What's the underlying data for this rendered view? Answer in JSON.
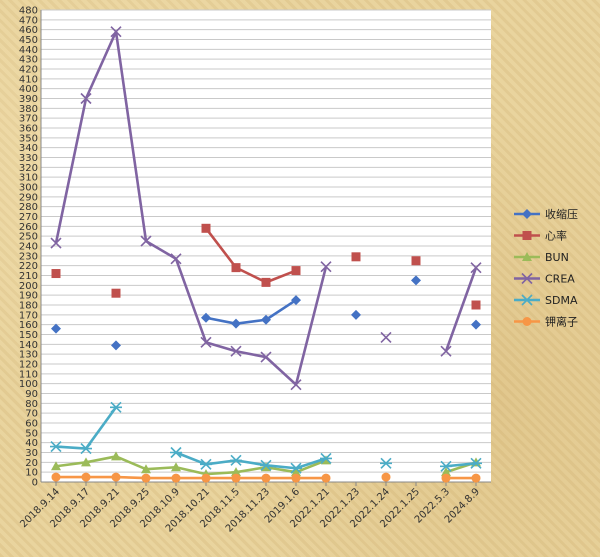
{
  "chart_data": {
    "type": "line",
    "categories": [
      "2018.9.14",
      "2018.9.17",
      "2018.9.21",
      "2018.9.25",
      "2018.10.9",
      "2018.10.21",
      "2018.11.5",
      "2018.11.23",
      "2019.1.6",
      "2022.1.21",
      "2022.1.23",
      "2022.1.24",
      "2022.1.25",
      "2022.5.3",
      "2024.8.9"
    ],
    "ylim": [
      0,
      480
    ],
    "ytick_step": 10,
    "grid": true,
    "legend_position": "right",
    "series": [
      {
        "name": "收缩压",
        "color": "#4472c4",
        "marker": "diamond",
        "values": [
          156,
          null,
          139,
          null,
          null,
          167,
          161,
          165,
          185,
          null,
          170,
          null,
          205,
          null,
          160
        ]
      },
      {
        "name": "心率",
        "color": "#c0504d",
        "marker": "square",
        "values": [
          212,
          null,
          192,
          null,
          null,
          258,
          218,
          203,
          215,
          null,
          229,
          null,
          225,
          null,
          180
        ]
      },
      {
        "name": "BUN",
        "color": "#9bbb59",
        "marker": "triangle",
        "values": [
          16,
          20,
          26,
          13,
          15,
          8,
          10,
          15,
          10,
          22,
          null,
          null,
          null,
          10,
          20
        ]
      },
      {
        "name": "CREA",
        "color": "#8064a2",
        "marker": "x",
        "values": [
          243,
          390,
          458,
          245,
          227,
          142,
          133,
          127,
          99,
          219,
          null,
          147,
          null,
          133,
          218
        ]
      },
      {
        "name": "SDMA",
        "color": "#4bacc6",
        "marker": "star",
        "values": [
          36,
          34,
          76,
          null,
          30,
          18,
          22,
          17,
          14,
          24,
          null,
          19,
          null,
          16,
          19
        ]
      },
      {
        "name": "钾离子",
        "color": "#f79646",
        "marker": "circle",
        "values": [
          5,
          5,
          5,
          4,
          4,
          4,
          4,
          4,
          4,
          4,
          null,
          5,
          null,
          4,
          4
        ]
      }
    ]
  }
}
